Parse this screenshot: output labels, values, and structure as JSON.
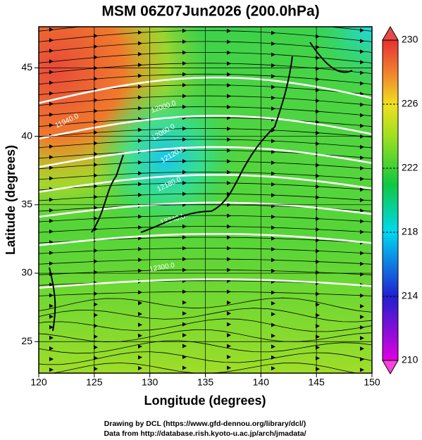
{
  "chart_data": {
    "type": "contour-map",
    "title": "MSM 06Z07Jun2026 (200.0hPa)",
    "xlabel": "Longitude (degrees)",
    "ylabel": "Latitude  (degrees)",
    "xlim": [
      120,
      150
    ],
    "ylim": [
      22.7,
      48
    ],
    "xticks": [
      120,
      125,
      130,
      135,
      140,
      145,
      150
    ],
    "yticks": [
      25,
      30,
      35,
      40,
      45
    ],
    "grid": true,
    "colorbar": {
      "lim": [
        210,
        230
      ],
      "ticks": [
        210,
        214,
        218,
        222,
        226,
        230
      ]
    },
    "contour_labels": [
      "11940.0",
      "12000.0",
      "12060.0",
      "12120.0",
      "12180.0",
      "12240.0",
      "12300.0"
    ]
  },
  "footer": [
    "Drawing by DCL (https://www.gfd-dennou.org/library/dcl/)",
    "Data from http://database.rish.kyoto-u.ac.jp/arch/jmadata/"
  ]
}
